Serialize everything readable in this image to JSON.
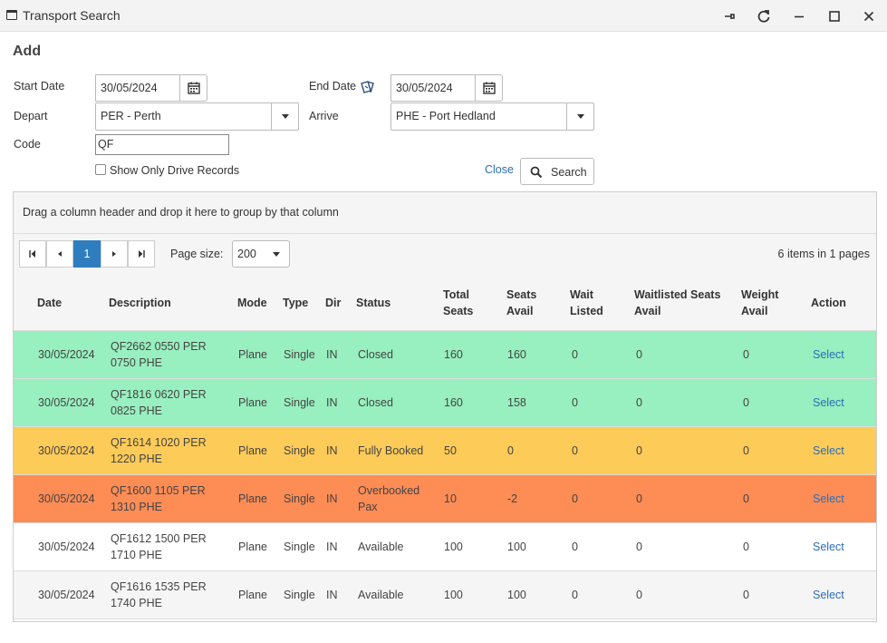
{
  "window": {
    "title": "Transport Search"
  },
  "section_title": "Add",
  "form": {
    "start_date_label": "Start Date",
    "start_date_value": "30/05/2024",
    "end_date_label": "End Date",
    "end_date_value": "30/05/2024",
    "depart_label": "Depart",
    "depart_value": "PER - Perth",
    "arrive_label": "Arrive",
    "arrive_value": "PHE - Port Hedland",
    "code_label": "Code",
    "code_value": "QF",
    "show_drive_label": "Show Only Drive Records",
    "close_label": "Close",
    "search_label": "Search"
  },
  "grid": {
    "group_hint": "Drag a column header and drop it here to group by that column",
    "current_page": "1",
    "page_size_label": "Page size:",
    "page_size_value": "200",
    "items_info": "6 items in 1 pages",
    "headers": {
      "date": "Date",
      "description": "Description",
      "mode": "Mode",
      "type": "Type",
      "dir": "Dir",
      "status": "Status",
      "total_seats_1": "Total",
      "total_seats_2": "Seats",
      "seats_avail_1": "Seats",
      "seats_avail_2": "Avail",
      "wait_listed_1": "Wait",
      "wait_listed_2": "Listed",
      "wl_seats_1": "Waitlisted Seats",
      "wl_seats_2": "Avail",
      "weight_1": "Weight",
      "weight_2": "Avail",
      "action": "Action"
    },
    "row_colors": {
      "closed": "#98efbf",
      "fully_booked": "#fdcb58",
      "overbooked": "#fd8c55",
      "available_1": "#ffffff",
      "available_2": "#f5f5f5"
    },
    "rows": [
      {
        "date": "30/05/2024",
        "desc1": "QF2662 0550 PER",
        "desc2": "0750 PHE",
        "mode": "Plane",
        "type": "Single",
        "dir": "IN",
        "status1": "Closed",
        "status2": "",
        "total": "160",
        "avail": "160",
        "wait": "0",
        "wl_avail": "0",
        "weight": "0",
        "action": "Select"
      },
      {
        "date": "30/05/2024",
        "desc1": "QF1816 0620 PER",
        "desc2": "0825 PHE",
        "mode": "Plane",
        "type": "Single",
        "dir": "IN",
        "status1": "Closed",
        "status2": "",
        "total": "160",
        "avail": "158",
        "wait": "0",
        "wl_avail": "0",
        "weight": "0",
        "action": "Select"
      },
      {
        "date": "30/05/2024",
        "desc1": "QF1614 1020 PER",
        "desc2": "1220 PHE",
        "mode": "Plane",
        "type": "Single",
        "dir": "IN",
        "status1": "Fully Booked",
        "status2": "",
        "total": "50",
        "avail": "0",
        "wait": "0",
        "wl_avail": "0",
        "weight": "0",
        "action": "Select"
      },
      {
        "date": "30/05/2024",
        "desc1": "QF1600 1105 PER",
        "desc2": "1310 PHE",
        "mode": "Plane",
        "type": "Single",
        "dir": "IN",
        "status1": "Overbooked",
        "status2": "Pax",
        "total": "10",
        "avail": "-2",
        "wait": "0",
        "wl_avail": "0",
        "weight": "0",
        "action": "Select"
      },
      {
        "date": "30/05/2024",
        "desc1": "QF1612 1500 PER",
        "desc2": "1710 PHE",
        "mode": "Plane",
        "type": "Single",
        "dir": "IN",
        "status1": "Available",
        "status2": "",
        "total": "100",
        "avail": "100",
        "wait": "0",
        "wl_avail": "0",
        "weight": "0",
        "action": "Select"
      },
      {
        "date": "30/05/2024",
        "desc1": "QF1616 1535 PER",
        "desc2": "1740 PHE",
        "mode": "Plane",
        "type": "Single",
        "dir": "IN",
        "status1": "Available",
        "status2": "",
        "total": "100",
        "avail": "100",
        "wait": "0",
        "wl_avail": "0",
        "weight": "0",
        "action": "Select"
      }
    ]
  }
}
